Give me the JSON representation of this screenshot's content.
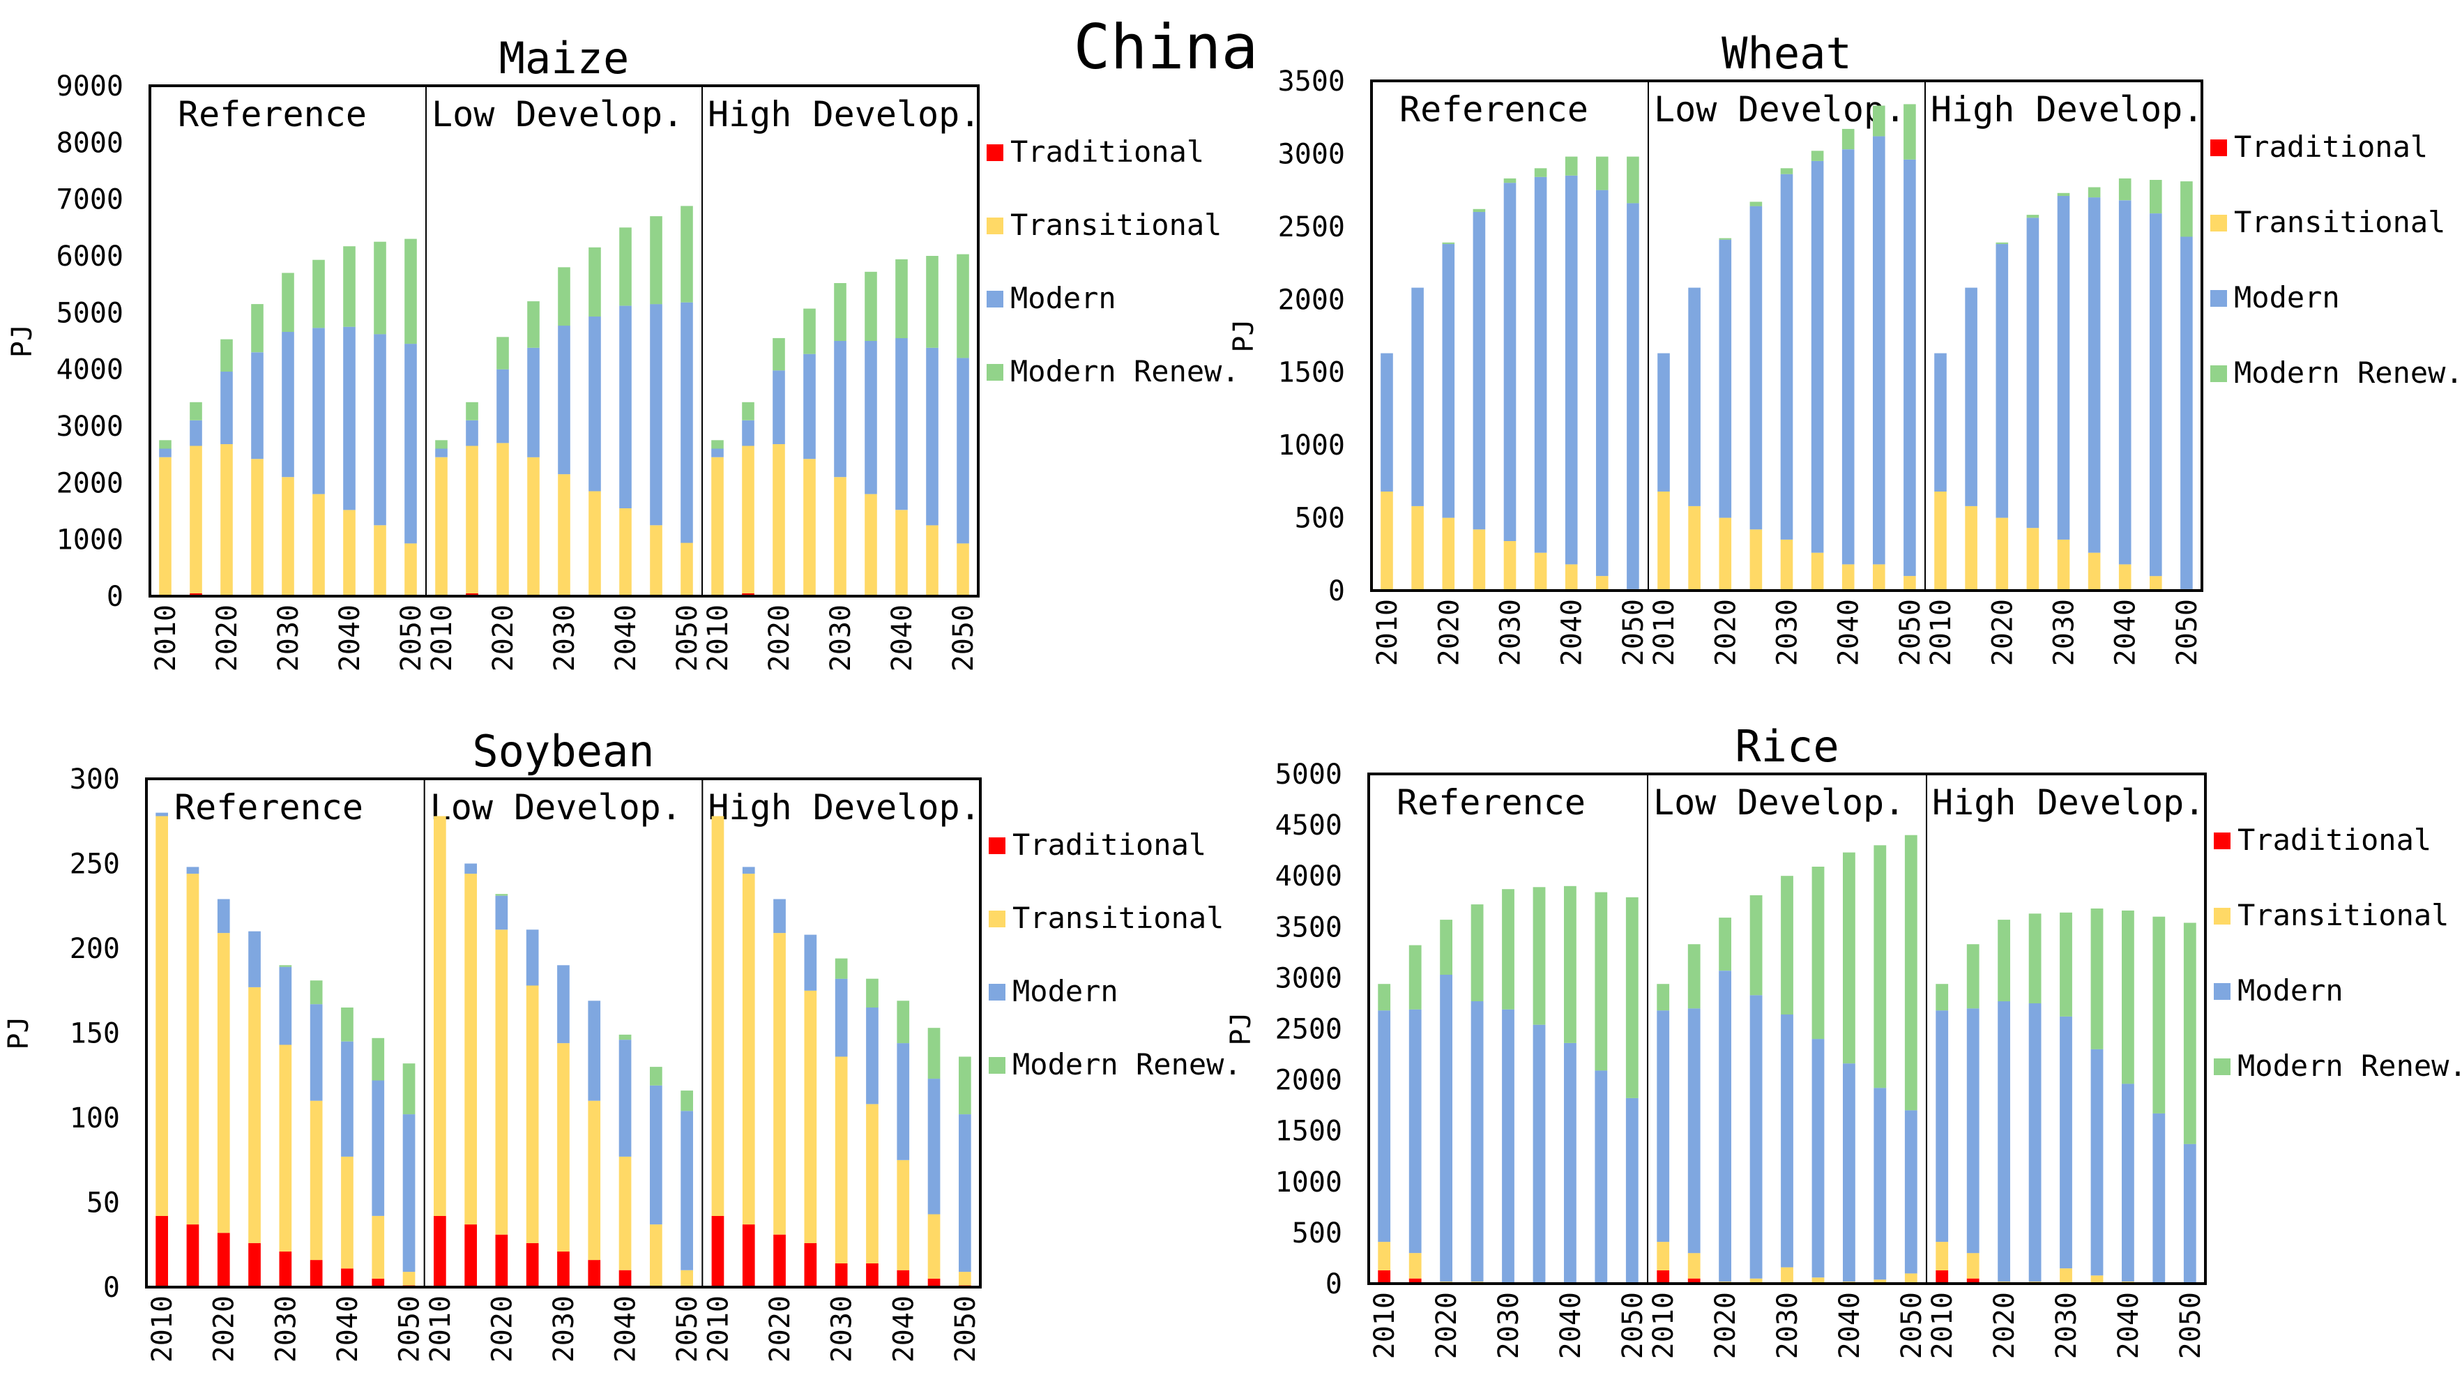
{
  "figure": {
    "title": "China",
    "colors": {
      "Traditional": "#ff0000",
      "Transitional": "#ffd966",
      "Modern": "#7fa7e0",
      "Modern Renew.": "#92d38a"
    }
  },
  "chart_data": [
    {
      "type": "bar",
      "stacked": true,
      "title": "Maize",
      "ylabel": "PJ",
      "ylim": [
        0,
        9000
      ],
      "yticks": [
        0,
        1000,
        2000,
        3000,
        4000,
        5000,
        6000,
        7000,
        8000,
        9000
      ],
      "x": [
        2010,
        2015,
        2020,
        2025,
        2030,
        2035,
        2040,
        2045,
        2050
      ],
      "xtick_labels": [
        "2010",
        "2020",
        "2030",
        "2040",
        "2050"
      ],
      "legend": [
        "Traditional",
        "Transitional",
        "Modern",
        "Modern Renew."
      ],
      "groups": [
        {
          "name": "Reference",
          "series": [
            {
              "name": "Traditional",
              "values": [
                0,
                50,
                0,
                0,
                0,
                0,
                0,
                0,
                0
              ]
            },
            {
              "name": "Transitional",
              "values": [
                2450,
                2600,
                2680,
                2420,
                2100,
                1800,
                1520,
                1250,
                930
              ]
            },
            {
              "name": "Modern",
              "values": [
                150,
                450,
                1280,
                1880,
                2560,
                2930,
                3230,
                3370,
                3520
              ]
            },
            {
              "name": "Modern Renew.",
              "values": [
                150,
                320,
                570,
                850,
                1040,
                1200,
                1420,
                1630,
                1850
              ]
            }
          ]
        },
        {
          "name": "Low Develop.",
          "series": [
            {
              "name": "Traditional",
              "values": [
                0,
                50,
                0,
                0,
                0,
                0,
                0,
                0,
                0
              ]
            },
            {
              "name": "Transitional",
              "values": [
                2450,
                2600,
                2700,
                2450,
                2150,
                1850,
                1550,
                1250,
                940
              ]
            },
            {
              "name": "Modern",
              "values": [
                150,
                450,
                1300,
                1930,
                2620,
                3080,
                3570,
                3900,
                4240
              ]
            },
            {
              "name": "Modern Renew.",
              "values": [
                150,
                320,
                570,
                820,
                1030,
                1220,
                1380,
                1550,
                1700
              ]
            }
          ]
        },
        {
          "name": "High Develop.",
          "series": [
            {
              "name": "Traditional",
              "values": [
                0,
                50,
                0,
                0,
                0,
                0,
                0,
                0,
                0
              ]
            },
            {
              "name": "Transitional",
              "values": [
                2450,
                2600,
                2680,
                2420,
                2100,
                1800,
                1520,
                1250,
                930
              ]
            },
            {
              "name": "Modern",
              "values": [
                150,
                450,
                1300,
                1850,
                2400,
                2700,
                3030,
                3130,
                3270
              ]
            },
            {
              "name": "Modern Renew.",
              "values": [
                150,
                320,
                570,
                800,
                1020,
                1220,
                1390,
                1620,
                1830
              ]
            }
          ]
        }
      ]
    },
    {
      "type": "bar",
      "stacked": true,
      "title": "Wheat",
      "ylabel": "PJ",
      "ylim": [
        0,
        3500
      ],
      "yticks": [
        0,
        500,
        1000,
        1500,
        2000,
        2500,
        3000,
        3500
      ],
      "x": [
        2010,
        2015,
        2020,
        2025,
        2030,
        2035,
        2040,
        2045,
        2050
      ],
      "xtick_labels": [
        "2010",
        "2020",
        "2030",
        "2040",
        "2050"
      ],
      "legend": [
        "Traditional",
        "Transitional",
        "Modern",
        "Modern Renew."
      ],
      "groups": [
        {
          "name": "Reference",
          "series": [
            {
              "name": "Traditional",
              "values": [
                0,
                0,
                0,
                0,
                0,
                0,
                0,
                0,
                0
              ]
            },
            {
              "name": "Transitional",
              "values": [
                680,
                580,
                500,
                420,
                340,
                260,
                180,
                100,
                10
              ]
            },
            {
              "name": "Modern",
              "values": [
                950,
                1500,
                1880,
                2180,
                2460,
                2580,
                2670,
                2650,
                2650
              ]
            },
            {
              "name": "Modern Renew.",
              "values": [
                0,
                0,
                10,
                20,
                30,
                60,
                130,
                230,
                320
              ]
            }
          ]
        },
        {
          "name": "Low Develop.",
          "series": [
            {
              "name": "Traditional",
              "values": [
                0,
                0,
                0,
                0,
                0,
                0,
                0,
                0,
                0
              ]
            },
            {
              "name": "Transitional",
              "values": [
                680,
                580,
                500,
                420,
                350,
                260,
                180,
                180,
                100
              ]
            },
            {
              "name": "Modern",
              "values": [
                950,
                1500,
                1910,
                2220,
                2510,
                2690,
                2850,
                2940,
                2860
              ]
            },
            {
              "name": "Modern Renew.",
              "values": [
                0,
                0,
                10,
                30,
                40,
                70,
                140,
                210,
                380
              ]
            }
          ]
        },
        {
          "name": "High Develop.",
          "series": [
            {
              "name": "Traditional",
              "values": [
                0,
                0,
                0,
                0,
                0,
                0,
                0,
                0,
                0
              ]
            },
            {
              "name": "Transitional",
              "values": [
                680,
                580,
                500,
                430,
                350,
                260,
                180,
                100,
                10
              ]
            },
            {
              "name": "Modern",
              "values": [
                950,
                1500,
                1880,
                2130,
                2360,
                2440,
                2500,
                2490,
                2420
              ]
            },
            {
              "name": "Modern Renew.",
              "values": [
                0,
                0,
                10,
                20,
                20,
                70,
                150,
                230,
                380
              ]
            }
          ]
        }
      ]
    },
    {
      "type": "bar",
      "stacked": true,
      "title": "Soybean",
      "ylabel": "PJ",
      "ylim": [
        0,
        300
      ],
      "yticks": [
        0,
        50,
        100,
        150,
        200,
        250,
        300
      ],
      "x": [
        2010,
        2015,
        2020,
        2025,
        2030,
        2035,
        2040,
        2045,
        2050
      ],
      "xtick_labels": [
        "2010",
        "2020",
        "2030",
        "2040",
        "2050"
      ],
      "legend": [
        "Traditional",
        "Transitional",
        "Modern",
        "Modern Renew."
      ],
      "groups": [
        {
          "name": "Reference",
          "series": [
            {
              "name": "Traditional",
              "values": [
                42,
                37,
                32,
                26,
                21,
                16,
                11,
                5,
                1
              ]
            },
            {
              "name": "Transitional",
              "values": [
                236,
                207,
                177,
                151,
                122,
                94,
                66,
                37,
                8
              ]
            },
            {
              "name": "Modern",
              "values": [
                2,
                4,
                20,
                33,
                46,
                57,
                68,
                80,
                93
              ]
            },
            {
              "name": "Modern Renew.",
              "values": [
                0,
                0,
                0,
                0,
                1,
                14,
                20,
                25,
                30
              ]
            }
          ]
        },
        {
          "name": "Low Develop.",
          "series": [
            {
              "name": "Traditional",
              "values": [
                42,
                37,
                31,
                26,
                21,
                16,
                10,
                0,
                0
              ]
            },
            {
              "name": "Transitional",
              "values": [
                236,
                207,
                180,
                152,
                123,
                94,
                67,
                37,
                10
              ]
            },
            {
              "name": "Modern",
              "values": [
                0,
                6,
                20,
                33,
                46,
                59,
                69,
                82,
                94
              ]
            },
            {
              "name": "Modern Renew.",
              "values": [
                0,
                0,
                1,
                0,
                0,
                0,
                3,
                11,
                12
              ]
            }
          ]
        },
        {
          "name": "High Develop.",
          "series": [
            {
              "name": "Traditional",
              "values": [
                42,
                37,
                31,
                26,
                14,
                14,
                10,
                5,
                1
              ]
            },
            {
              "name": "Transitional",
              "values": [
                236,
                207,
                178,
                149,
                122,
                94,
                65,
                38,
                8
              ]
            },
            {
              "name": "Modern",
              "values": [
                0,
                4,
                20,
                33,
                46,
                57,
                69,
                80,
                93
              ]
            },
            {
              "name": "Modern Renew.",
              "values": [
                0,
                0,
                0,
                0,
                12,
                17,
                25,
                30,
                34
              ]
            }
          ]
        }
      ]
    },
    {
      "type": "bar",
      "stacked": true,
      "title": "Rice",
      "ylabel": "PJ",
      "ylim": [
        0,
        5000
      ],
      "yticks": [
        0,
        500,
        1000,
        1500,
        2000,
        2500,
        3000,
        3500,
        4000,
        4500,
        5000
      ],
      "x": [
        2010,
        2015,
        2020,
        2025,
        2030,
        2035,
        2040,
        2045,
        2050
      ],
      "xtick_labels": [
        "2010",
        "2020",
        "2030",
        "2040",
        "2050"
      ],
      "legend": [
        "Traditional",
        "Transitional",
        "Modern",
        "Modern Renew."
      ],
      "groups": [
        {
          "name": "Reference",
          "series": [
            {
              "name": "Traditional",
              "values": [
                130,
                50,
                0,
                0,
                0,
                0,
                0,
                0,
                0
              ]
            },
            {
              "name": "Transitional",
              "values": [
                280,
                250,
                20,
                20,
                10,
                10,
                10,
                10,
                10
              ]
            },
            {
              "name": "Modern",
              "values": [
                2270,
                2390,
                3010,
                2750,
                2680,
                2530,
                2350,
                2080,
                1810
              ]
            },
            {
              "name": "Modern Renew.",
              "values": [
                260,
                630,
                540,
                950,
                1180,
                1350,
                1540,
                1750,
                1970
              ]
            }
          ]
        },
        {
          "name": "Low Develop.",
          "series": [
            {
              "name": "Traditional",
              "values": [
                130,
                50,
                0,
                0,
                0,
                0,
                0,
                0,
                0
              ]
            },
            {
              "name": "Transitional",
              "values": [
                280,
                250,
                20,
                50,
                160,
                60,
                20,
                40,
                100
              ]
            },
            {
              "name": "Modern",
              "values": [
                2270,
                2400,
                3050,
                2780,
                2480,
                2340,
                2140,
                1880,
                1600
              ]
            },
            {
              "name": "Modern Renew.",
              "values": [
                260,
                630,
                520,
                980,
                1360,
                1690,
                2070,
                2380,
                2700
              ]
            }
          ]
        },
        {
          "name": "High Develop.",
          "series": [
            {
              "name": "Traditional",
              "values": [
                130,
                50,
                0,
                0,
                0,
                0,
                0,
                0,
                0
              ]
            },
            {
              "name": "Transitional",
              "values": [
                280,
                250,
                20,
                20,
                150,
                80,
                20,
                10,
                10
              ]
            },
            {
              "name": "Modern",
              "values": [
                2270,
                2400,
                2750,
                2730,
                2470,
                2220,
                1940,
                1660,
                1360
              ]
            },
            {
              "name": "Modern Renew.",
              "values": [
                260,
                630,
                800,
                880,
                1020,
                1380,
                1700,
                1930,
                2170
              ]
            }
          ]
        }
      ]
    }
  ]
}
